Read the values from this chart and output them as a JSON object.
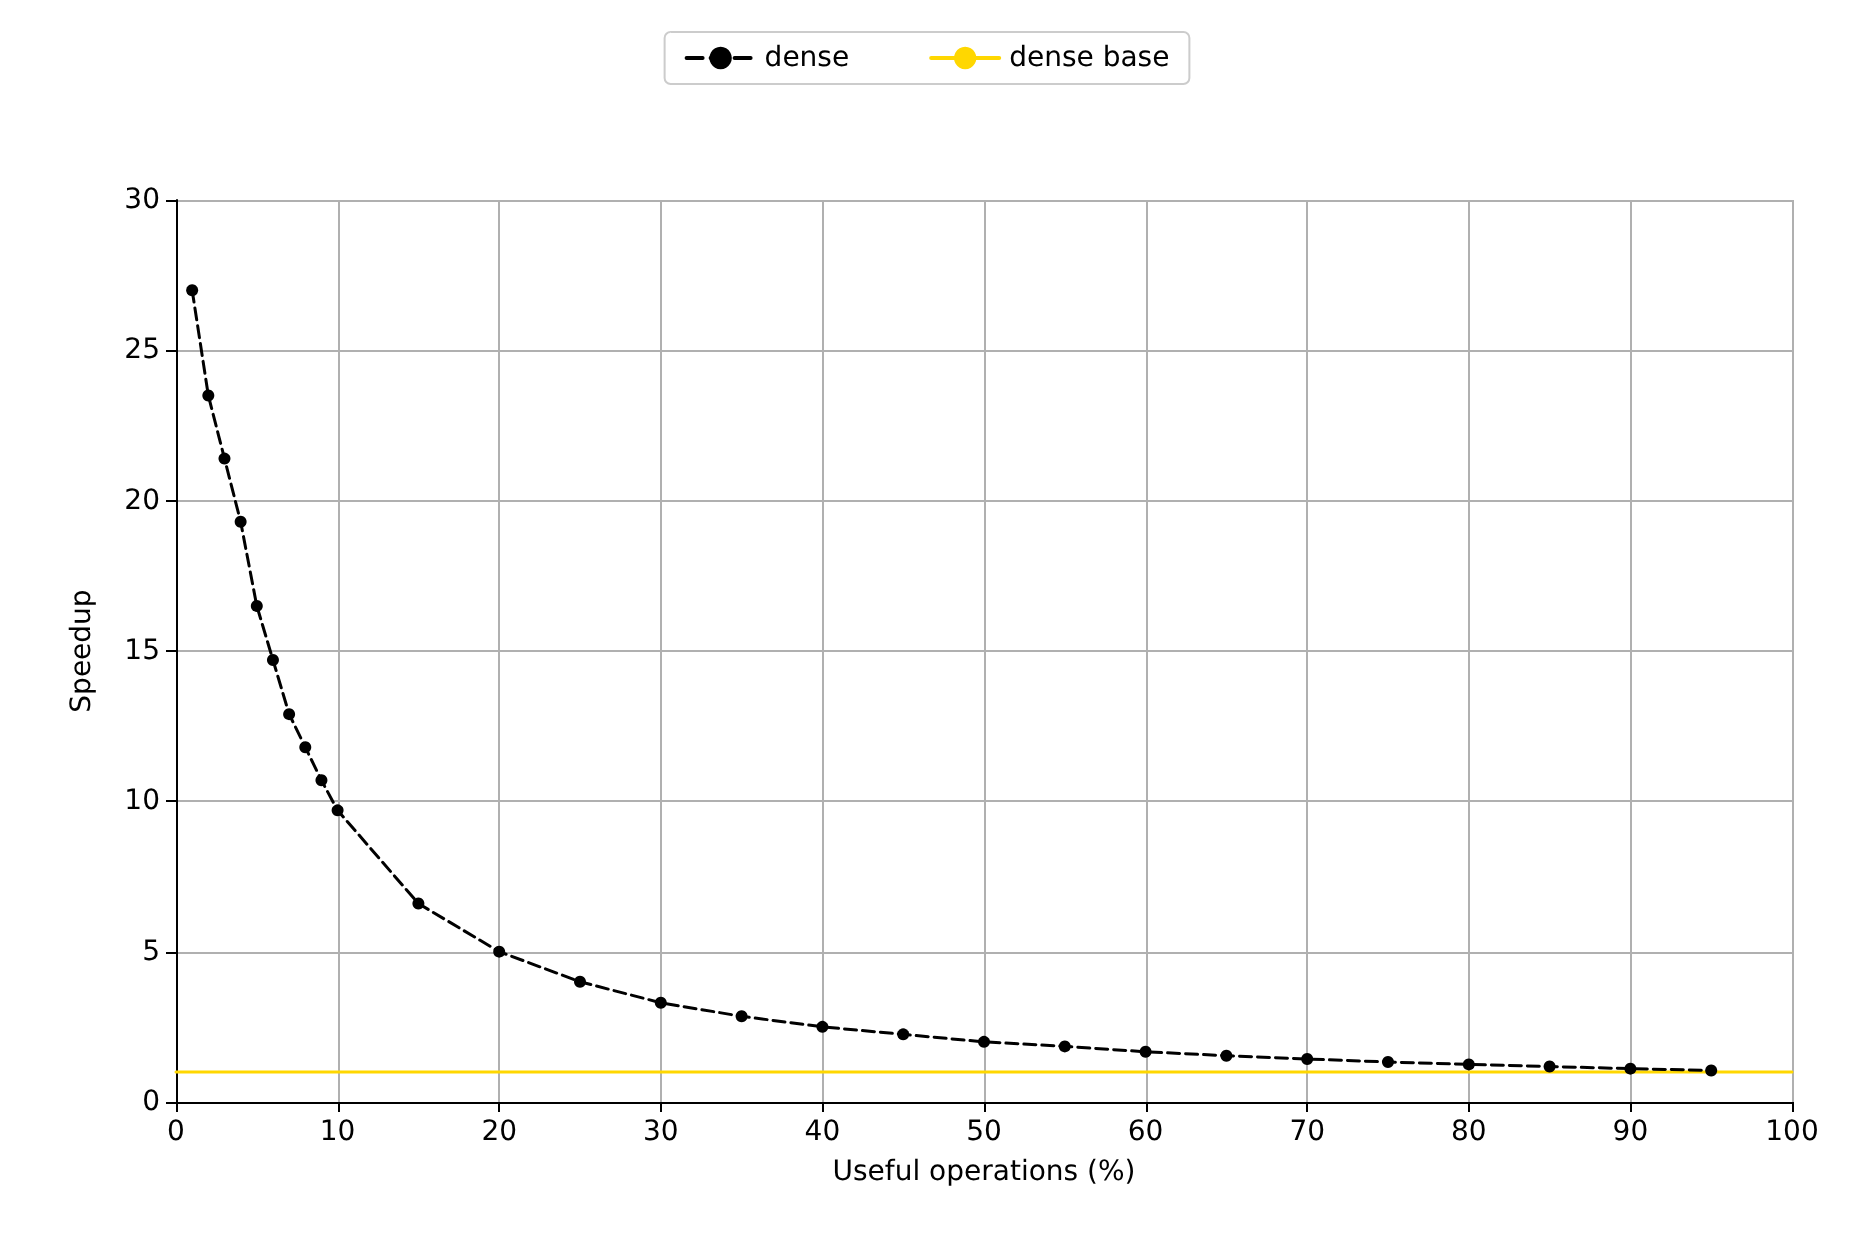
{
  "chart_data": {
    "type": "line",
    "xlabel": "Useful operations (%)",
    "ylabel": "Speedup",
    "series": [
      {
        "name": "dense",
        "color": "#000000",
        "marker": "circle",
        "line_style": "dashed",
        "x": [
          1,
          2,
          3,
          4,
          5,
          6,
          7,
          8,
          9,
          10,
          15,
          20,
          25,
          30,
          35,
          40,
          45,
          50,
          55,
          60,
          65,
          70,
          75,
          80,
          85,
          90,
          95
        ],
        "values": [
          27.0,
          23.5,
          21.4,
          19.3,
          16.5,
          14.7,
          12.9,
          11.8,
          10.7,
          9.7,
          6.6,
          5.0,
          4.0,
          3.3,
          2.85,
          2.5,
          2.25,
          2.0,
          1.85,
          1.67,
          1.54,
          1.43,
          1.33,
          1.25,
          1.18,
          1.11,
          1.05
        ]
      },
      {
        "name": "dense base",
        "color": "#ffd700",
        "marker": "none",
        "line_style": "solid",
        "x": [
          0,
          100
        ],
        "values": [
          1,
          1
        ]
      }
    ],
    "xlim": [
      0,
      100
    ],
    "xticks": [
      0,
      10,
      20,
      30,
      40,
      50,
      60,
      70,
      80,
      90,
      100
    ],
    "ylim": [
      0,
      30
    ],
    "yticks": [
      0,
      5,
      10,
      15,
      20,
      25,
      30
    ],
    "grid": true,
    "legend": "top"
  }
}
